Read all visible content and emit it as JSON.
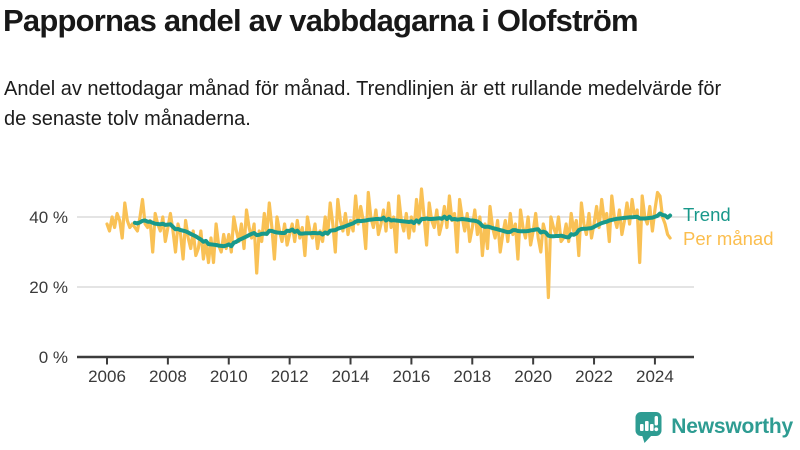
{
  "header": {
    "title": "Pappornas andel av vabbdagarna i Olofström",
    "subtitle": "Andel av nettodagar månad för månad. Trendlinjen är ett rullande medelvärde för de senaste tolv månaderna."
  },
  "legend": {
    "trend_label": "Trend",
    "per_month_label": "Per månad"
  },
  "footer": {
    "brand_name": "Newsworthy",
    "brand_icon": "bar-chart-speech-bubble-icon"
  },
  "colors": {
    "trend_line": "#18998B",
    "per_month_line": "#F9C155",
    "legend_trend_text": "#18988A",
    "legend_month_text": "#FBBE4E",
    "gridline": "#DCDCDC",
    "axis": "#3C3C3C",
    "tick_text": "#3A3A3A",
    "brand_teal": "#2E9C92"
  },
  "chart_data": {
    "type": "line",
    "title": "Pappornas andel av vabbdagarna i Olofström",
    "xlabel": "",
    "ylabel": "",
    "unit": "%",
    "xlim": [
      2005.0,
      2025.3
    ],
    "ylim": [
      0,
      55
    ],
    "grid": "horizontal only",
    "legend_position": "right of line ends",
    "x_ticks": [
      2006,
      2008,
      2010,
      2012,
      2014,
      2016,
      2018,
      2020,
      2022,
      2024
    ],
    "y_ticks": [
      {
        "value": 0,
        "label": "0 %",
        "grid": false
      },
      {
        "value": 20,
        "label": "20 %",
        "grid": true
      },
      {
        "value": 40,
        "label": "40 %",
        "grid": true
      }
    ],
    "start_year": 2006,
    "months_per_point": 1,
    "series": [
      {
        "name": "Per månad",
        "color": "#F9C155",
        "values": [
          38,
          36,
          40,
          37,
          41,
          39,
          34,
          44,
          39,
          37,
          38,
          37,
          36,
          40,
          45,
          38,
          37,
          39,
          30,
          41,
          38,
          36,
          40,
          33,
          37,
          41,
          36,
          30,
          38,
          35,
          28,
          39,
          34,
          31,
          36,
          29,
          31,
          36,
          28,
          33,
          27,
          34,
          27,
          38,
          32,
          30,
          35,
          31,
          35,
          30,
          40,
          36,
          33,
          38,
          31,
          42,
          37,
          34,
          38,
          24,
          36,
          33,
          41,
          35,
          44,
          37,
          28,
          40,
          36,
          33,
          38,
          32,
          35,
          38,
          33,
          39,
          34,
          37,
          29,
          40,
          36,
          34,
          38,
          31,
          36,
          33,
          40,
          35,
          44,
          38,
          30,
          45,
          39,
          36,
          41,
          35,
          39,
          36,
          46,
          38,
          43,
          39,
          31,
          47,
          40,
          37,
          42,
          35,
          38,
          42,
          36,
          44,
          37,
          40,
          30,
          46,
          39,
          36,
          41,
          34,
          40,
          36,
          45,
          38,
          48,
          40,
          32,
          44,
          39,
          37,
          42,
          35,
          38,
          43,
          37,
          46,
          39,
          41,
          30,
          45,
          40,
          36,
          41,
          33,
          37,
          42,
          35,
          40,
          29,
          38,
          31,
          43,
          37,
          34,
          39,
          30,
          35,
          39,
          33,
          41,
          35,
          38,
          28,
          42,
          37,
          34,
          40,
          32,
          36,
          41,
          34,
          30,
          38,
          35,
          17,
          40,
          37,
          35,
          40,
          33,
          34,
          38,
          33,
          41,
          36,
          39,
          29,
          44,
          38,
          35,
          41,
          34,
          38,
          43,
          37,
          45,
          39,
          41,
          33,
          46,
          40,
          37,
          42,
          35,
          39,
          44,
          38,
          45,
          40,
          42,
          27,
          46,
          40,
          38,
          43,
          36,
          42,
          47,
          46,
          40,
          38,
          35,
          34
        ]
      },
      {
        "name": "Trend",
        "color": "#18998B",
        "derived": "rolling_mean_of_last_12_months_of_Per_månad"
      }
    ]
  }
}
